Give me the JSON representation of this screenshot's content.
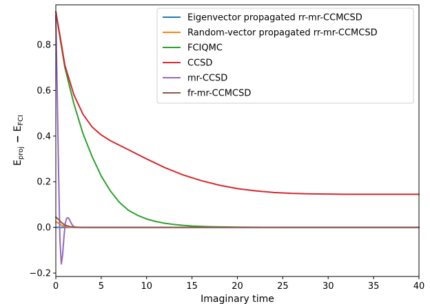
{
  "chart_data": {
    "type": "line",
    "title": "",
    "xlabel": "Imaginary time",
    "ylabel": {
      "main": "E",
      "sub1": "proj",
      "minus": " − ",
      "main2": "E",
      "sub2": "FCI"
    },
    "xlim": [
      0,
      40
    ],
    "ylim": [
      -0.215,
      0.975
    ],
    "xticks": [
      0,
      5,
      10,
      15,
      20,
      25,
      30,
      35,
      40
    ],
    "yticks": [
      -0.2,
      0.0,
      0.2,
      0.4,
      0.6,
      0.8
    ],
    "ytick_labels": [
      "−0.2",
      "0.0",
      "0.2",
      "0.4",
      "0.6",
      "0.8"
    ],
    "grid": false,
    "legend": "top-right",
    "series": [
      {
        "name": "Eigenvector propagated rr-mr-CCMCSD",
        "color": "#1f77b4",
        "x": [
          0,
          0.3,
          0.6,
          1.0,
          1.5,
          2,
          3,
          5,
          10,
          20,
          40
        ],
        "y": [
          0.0,
          0.0,
          0.0,
          0.0,
          0.0,
          0.0,
          0.0,
          0.0,
          0.0,
          0.0,
          0.0
        ]
      },
      {
        "name": "Random-vector propagated rr-mr-CCMCSD",
        "color": "#ff7f0e",
        "x": [
          0,
          0.3,
          0.6,
          1.0,
          1.5,
          2,
          3,
          5,
          10,
          20,
          40
        ],
        "y": [
          0.025,
          0.018,
          0.01,
          0.004,
          0.001,
          0.0,
          0.0,
          0.0,
          0.0,
          0.0,
          0.0
        ]
      },
      {
        "name": "FCIQMC",
        "color": "#2ca02c",
        "x": [
          0,
          0.5,
          1,
          1.5,
          2,
          3,
          4,
          5,
          6,
          7,
          8,
          9,
          10,
          11,
          12,
          13,
          14,
          15,
          17,
          20,
          25,
          30,
          35,
          40
        ],
        "y": [
          0.945,
          0.82,
          0.7,
          0.62,
          0.54,
          0.41,
          0.31,
          0.225,
          0.16,
          0.11,
          0.075,
          0.053,
          0.037,
          0.026,
          0.018,
          0.013,
          0.009,
          0.006,
          0.003,
          0.001,
          0.0,
          0.0,
          0.0,
          0.0
        ]
      },
      {
        "name": "CCSD",
        "color": "#d62728",
        "x": [
          0,
          0.5,
          1,
          2,
          3,
          4,
          5,
          6,
          7,
          8,
          10,
          12,
          14,
          16,
          18,
          20,
          22,
          24,
          26,
          28,
          30,
          32,
          35,
          40
        ],
        "y": [
          0.945,
          0.83,
          0.71,
          0.58,
          0.495,
          0.44,
          0.405,
          0.38,
          0.36,
          0.34,
          0.3,
          0.262,
          0.23,
          0.205,
          0.185,
          0.17,
          0.16,
          0.153,
          0.149,
          0.147,
          0.146,
          0.145,
          0.145,
          0.145
        ]
      },
      {
        "name": "mr-CCSD",
        "color": "#9467bd",
        "x": [
          0,
          0.15,
          0.3,
          0.45,
          0.6,
          0.75,
          0.9,
          1.05,
          1.2,
          1.35,
          1.5,
          1.7,
          1.9,
          2.1,
          2.4,
          3,
          5,
          10,
          20,
          40
        ],
        "y": [
          0.93,
          0.6,
          0.25,
          -0.05,
          -0.16,
          -0.12,
          -0.04,
          0.02,
          0.04,
          0.042,
          0.035,
          0.018,
          0.006,
          0.002,
          0.0,
          0.0,
          0.0,
          0.0,
          0.0,
          0.0
        ]
      },
      {
        "name": "fr-mr-CCMCSD",
        "color": "#8c564b",
        "x": [
          0,
          0.3,
          0.6,
          1.0,
          1.5,
          2,
          3,
          5,
          10,
          20,
          40
        ],
        "y": [
          0.045,
          0.035,
          0.022,
          0.01,
          0.004,
          0.001,
          0.0,
          0.0,
          0.0,
          0.0,
          0.0
        ]
      }
    ]
  }
}
